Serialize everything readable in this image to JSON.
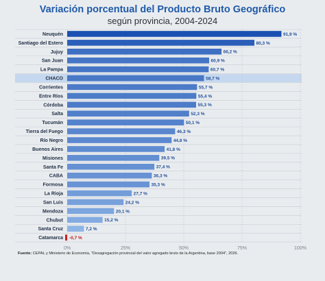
{
  "title": "Variación porcentual del Producto Bruto Geográfico",
  "subtitle": "según provincia, 2004-2024",
  "source_label": "Fuente:",
  "source_text": "CEPAL y Ministerio de Economía, \"Desagregación provincial del valor agregado bruto de la Argentina, base 2004\", 2026.",
  "colors": {
    "dark_blue": "#1f58b8",
    "highlight_band": "#c5d8ef",
    "negative": "#d21f1f"
  },
  "chart_data": {
    "type": "bar",
    "orientation": "horizontal",
    "title": "Variación porcentual del Producto Bruto Geográfico",
    "subtitle": "según provincia, 2004-2024",
    "categories": [
      "Neuquén",
      "Santiago del Estero",
      "Jujuy",
      "San Juan",
      "La Pampa",
      "CHACO",
      "Corrientes",
      "Entre Ríos",
      "Córdoba",
      "Salta",
      "Tucumán",
      "Tierra del Fuego",
      "Río Negro",
      "Buenos Aires",
      "Misiones",
      "Santa Fe",
      "CABA",
      "Formosa",
      "La Rioja",
      "San Luis",
      "Mendoza",
      "Chubut",
      "Santa Cruz",
      "Catamarca"
    ],
    "values": [
      91.9,
      80.3,
      66.2,
      60.9,
      60.7,
      58.7,
      55.7,
      55.4,
      55.3,
      52.3,
      50.1,
      46.3,
      44.8,
      41.8,
      39.5,
      37.4,
      36.3,
      35.3,
      27.7,
      24.2,
      20.1,
      15.2,
      7.2,
      -0.7
    ],
    "value_labels": [
      "91,9 %",
      "80,3 %",
      "66,2 %",
      "60,9 %",
      "60,7 %",
      "58,7 %",
      "55,7 %",
      "55,4 %",
      "55,3 %",
      "52,3 %",
      "50,1 %",
      "46,3 %",
      "44,8 %",
      "41,8 %",
      "39,5 %",
      "37,4 %",
      "36,3 %",
      "35,3 %",
      "27,7 %",
      "24,2 %",
      "20,1 %",
      "15,2 %",
      "7,2 %",
      "-0,7 %"
    ],
    "highlight": "CHACO",
    "xlim": [
      0,
      100
    ],
    "xticks": [
      0,
      25,
      50,
      75,
      100
    ],
    "xtick_labels": [
      "0%",
      "25%",
      "50%",
      "75%",
      "100%"
    ],
    "grid": true
  }
}
